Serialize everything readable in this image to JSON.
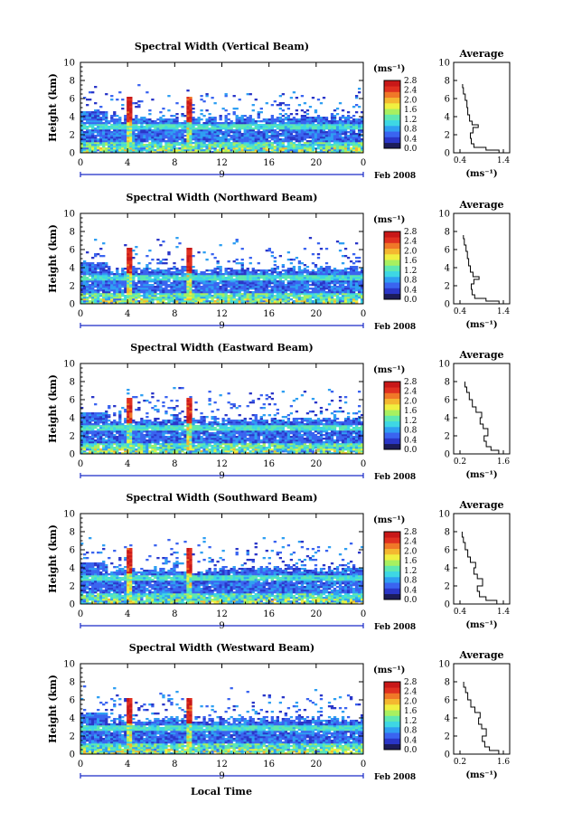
{
  "chart_data": [
    {
      "type": "heatmap",
      "title": "Spectral Width (Vertical Beam)",
      "ylabel": "Height (km)",
      "ylim": [
        0,
        10
      ],
      "yticks": [
        "0",
        "2",
        "4",
        "6",
        "8",
        "10"
      ],
      "xticks": [
        "0",
        "4",
        "8",
        "12",
        "16",
        "20",
        "0"
      ],
      "date_marker": "9",
      "date_label": "Feb 2008",
      "colorbar": {
        "unit": "(ms⁻¹)",
        "ticks": [
          "0.0",
          "0.4",
          "0.8",
          "1.2",
          "1.6",
          "2.0",
          "2.4",
          "2.8"
        ]
      },
      "average": {
        "title": "Average",
        "xlabel": "(ms⁻¹)",
        "xticks": [
          "0.4",
          "1.4"
        ],
        "xlim": [
          0.4,
          1.4
        ],
        "yticks": [
          "0",
          "2",
          "4",
          "6",
          "8",
          "10"
        ],
        "ylim": [
          0,
          10
        ],
        "profile": [
          [
            1.35,
            0
          ],
          [
            1.3,
            0.3
          ],
          [
            1.0,
            0.6
          ],
          [
            0.72,
            1.0
          ],
          [
            0.66,
            1.6
          ],
          [
            0.64,
            2.2
          ],
          [
            0.7,
            2.8
          ],
          [
            0.82,
            3.1
          ],
          [
            0.68,
            3.5
          ],
          [
            0.62,
            4.2
          ],
          [
            0.58,
            5.0
          ],
          [
            0.56,
            5.8
          ],
          [
            0.52,
            6.5
          ],
          [
            0.48,
            7.2
          ],
          [
            0.46,
            7.6
          ]
        ]
      }
    },
    {
      "type": "heatmap",
      "title": "Spectral Width (Northward Beam)",
      "ylabel": "Height (km)",
      "ylim": [
        0,
        10
      ],
      "yticks": [
        "0",
        "2",
        "4",
        "6",
        "8",
        "10"
      ],
      "xticks": [
        "0",
        "4",
        "8",
        "12",
        "16",
        "20",
        "0"
      ],
      "date_marker": "9",
      "date_label": "Feb 2008",
      "colorbar": {
        "unit": "(ms⁻¹)",
        "ticks": [
          "0.0",
          "0.4",
          "0.8",
          "1.2",
          "1.6",
          "2.0",
          "2.4",
          "2.8"
        ]
      },
      "average": {
        "title": "Average",
        "xlabel": "(ms⁻¹)",
        "xticks": [
          "0.4",
          "1.4"
        ],
        "xlim": [
          0.4,
          1.4
        ],
        "yticks": [
          "0",
          "2",
          "4",
          "6",
          "8",
          "10"
        ],
        "ylim": [
          0,
          10
        ],
        "profile": [
          [
            1.35,
            0
          ],
          [
            1.3,
            0.3
          ],
          [
            1.0,
            0.6
          ],
          [
            0.74,
            1.0
          ],
          [
            0.68,
            1.6
          ],
          [
            0.66,
            2.2
          ],
          [
            0.72,
            2.7
          ],
          [
            0.84,
            3.0
          ],
          [
            0.7,
            3.5
          ],
          [
            0.64,
            4.2
          ],
          [
            0.6,
            5.0
          ],
          [
            0.57,
            5.8
          ],
          [
            0.54,
            6.5
          ],
          [
            0.5,
            7.2
          ],
          [
            0.48,
            7.6
          ]
        ]
      }
    },
    {
      "type": "heatmap",
      "title": "Spectral Width (Eastward Beam)",
      "ylabel": "Height (km)",
      "ylim": [
        0,
        10
      ],
      "yticks": [
        "0",
        "2",
        "4",
        "6",
        "8",
        "10"
      ],
      "xticks": [
        "0",
        "4",
        "8",
        "12",
        "16",
        "20",
        "0"
      ],
      "date_marker": "9",
      "date_label": "Feb 2008",
      "colorbar": {
        "unit": "(ms⁻¹)",
        "ticks": [
          "0.0",
          "0.4",
          "0.8",
          "1.2",
          "1.6",
          "2.0",
          "2.4",
          "2.8"
        ]
      },
      "average": {
        "title": "Average",
        "xlabel": "(ms⁻¹)",
        "xticks": [
          "0.2",
          "1.6"
        ],
        "xlim": [
          0.2,
          1.6
        ],
        "yticks": [
          "0",
          "2",
          "4",
          "6",
          "8",
          "10"
        ],
        "ylim": [
          0,
          10
        ],
        "profile": [
          [
            1.55,
            0
          ],
          [
            1.45,
            0.4
          ],
          [
            1.2,
            0.8
          ],
          [
            1.05,
            1.4
          ],
          [
            0.98,
            2.0
          ],
          [
            1.1,
            2.8
          ],
          [
            0.95,
            3.3
          ],
          [
            0.85,
            4.0
          ],
          [
            0.9,
            4.6
          ],
          [
            0.72,
            5.2
          ],
          [
            0.6,
            6.0
          ],
          [
            0.5,
            6.8
          ],
          [
            0.42,
            7.4
          ],
          [
            0.36,
            8.0
          ]
        ]
      }
    },
    {
      "type": "heatmap",
      "title": "Spectral Width (Southward Beam)",
      "ylabel": "Height (km)",
      "ylim": [
        0,
        10
      ],
      "yticks": [
        "0",
        "2",
        "4",
        "6",
        "8",
        "10"
      ],
      "xticks": [
        "0",
        "4",
        "8",
        "12",
        "16",
        "20",
        "0"
      ],
      "date_marker": "9",
      "date_label": "Feb 2008",
      "colorbar": {
        "unit": "(ms⁻¹)",
        "ticks": [
          "0.0",
          "0.4",
          "0.8",
          "1.2",
          "1.6",
          "2.0",
          "2.4",
          "2.8"
        ]
      },
      "average": {
        "title": "Average",
        "xlabel": "(ms⁻¹)",
        "xticks": [
          "0.4",
          "1.4"
        ],
        "xlim": [
          0.4,
          1.4
        ],
        "yticks": [
          "0",
          "2",
          "4",
          "6",
          "8",
          "10"
        ],
        "ylim": [
          0,
          10
        ],
        "profile": [
          [
            1.35,
            0
          ],
          [
            1.25,
            0.4
          ],
          [
            1.0,
            0.8
          ],
          [
            0.85,
            1.4
          ],
          [
            0.8,
            2.0
          ],
          [
            0.92,
            2.8
          ],
          [
            0.8,
            3.3
          ],
          [
            0.72,
            4.0
          ],
          [
            0.76,
            4.6
          ],
          [
            0.64,
            5.2
          ],
          [
            0.58,
            6.0
          ],
          [
            0.52,
            6.8
          ],
          [
            0.48,
            7.4
          ],
          [
            0.45,
            8.0
          ]
        ]
      }
    },
    {
      "type": "heatmap",
      "title": "Spectral Width (Westward Beam)",
      "ylabel": "Height (km)",
      "ylim": [
        0,
        10
      ],
      "yticks": [
        "0",
        "2",
        "4",
        "6",
        "8",
        "10"
      ],
      "xticks": [
        "0",
        "4",
        "8",
        "12",
        "16",
        "20",
        "0"
      ],
      "date_marker": "9",
      "date_label": "Feb 2008",
      "colorbar": {
        "unit": "(ms⁻¹)",
        "ticks": [
          "0.0",
          "0.4",
          "0.8",
          "1.2",
          "1.6",
          "2.0",
          "2.4",
          "2.8"
        ]
      },
      "average": {
        "title": "Average",
        "xlabel": "(ms⁻¹)",
        "xticks": [
          "0.2",
          "1.6"
        ],
        "xlim": [
          0.2,
          1.6
        ],
        "yticks": [
          "0",
          "2",
          "4",
          "6",
          "8",
          "10"
        ],
        "ylim": [
          0,
          10
        ],
        "profile": [
          [
            1.55,
            0
          ],
          [
            1.45,
            0.4
          ],
          [
            1.15,
            0.8
          ],
          [
            1.0,
            1.4
          ],
          [
            0.92,
            2.0
          ],
          [
            1.05,
            2.8
          ],
          [
            0.9,
            3.3
          ],
          [
            0.8,
            4.0
          ],
          [
            0.85,
            4.6
          ],
          [
            0.68,
            5.2
          ],
          [
            0.55,
            6.0
          ],
          [
            0.45,
            6.8
          ],
          [
            0.38,
            7.4
          ],
          [
            0.32,
            8.0
          ]
        ]
      }
    }
  ],
  "xlabel": "Local Time",
  "colors": {
    "colorscale": [
      "#1c1c5a",
      "#2a36c8",
      "#3a64f0",
      "#2f9ff2",
      "#3ed7e4",
      "#5fe8b0",
      "#a8f060",
      "#f0f040",
      "#f4b830",
      "#f07828",
      "#e03020",
      "#c81818"
    ],
    "background": "#ffffff",
    "axis": "#000000",
    "date_marker": "#1a2ac8"
  }
}
